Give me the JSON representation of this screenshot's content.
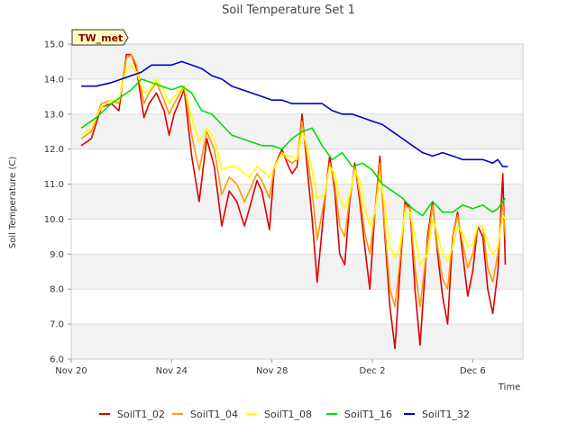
{
  "chart_data": {
    "type": "line",
    "title": "Soil Temperature Set 1",
    "badge": "TW_met",
    "xlabel": "Time",
    "ylabel": "Soil Temperature (C)",
    "x_tick_labels": [
      "Nov 20",
      "Nov 24",
      "Nov 28",
      "Dec 2",
      "Dec 6"
    ],
    "x_tick_days": [
      0,
      4,
      8,
      12,
      16
    ],
    "x_range_days": [
      0,
      18
    ],
    "ylim": [
      6.0,
      15.0
    ],
    "y_ticks": [
      6.0,
      7.0,
      8.0,
      9.0,
      10.0,
      11.0,
      12.0,
      13.0,
      14.0,
      15.0
    ],
    "y_tick_labels": [
      "6.0",
      "7.0",
      "8.0",
      "9.0",
      "10.0",
      "11.0",
      "12.0",
      "13.0",
      "14.0",
      "15.0"
    ],
    "grid": "horizontal bands",
    "legend_position": "bottom",
    "series": [
      {
        "name": "SoilT1_02",
        "color": "#dd0000",
        "x": [
          0.4,
          0.8,
          1.2,
          1.6,
          1.9,
          2.2,
          2.4,
          2.6,
          2.9,
          3.1,
          3.4,
          3.7,
          3.9,
          4.1,
          4.5,
          4.8,
          5.1,
          5.4,
          5.7,
          6.0,
          6.3,
          6.6,
          6.9,
          7.1,
          7.4,
          7.6,
          7.9,
          8.1,
          8.4,
          8.6,
          8.8,
          9.0,
          9.2,
          9.4,
          9.6,
          9.8,
          10.1,
          10.3,
          10.5,
          10.7,
          10.9,
          11.1,
          11.3,
          11.5,
          11.7,
          11.9,
          12.1,
          12.3,
          12.5,
          12.7,
          12.9,
          13.1,
          13.3,
          13.5,
          13.7,
          13.9,
          14.2,
          14.4,
          14.6,
          14.8,
          15.0,
          15.2,
          15.4,
          15.6,
          15.8,
          16.0,
          16.2,
          16.4,
          16.6,
          16.8,
          17.0,
          17.2,
          17.3
        ],
        "y": [
          12.1,
          12.3,
          13.2,
          13.3,
          13.1,
          14.7,
          14.7,
          14.3,
          12.9,
          13.3,
          13.6,
          13.1,
          12.4,
          13.0,
          13.7,
          11.8,
          10.5,
          12.3,
          11.5,
          9.8,
          10.8,
          10.5,
          9.8,
          10.3,
          11.1,
          10.8,
          9.7,
          11.5,
          12.0,
          11.6,
          11.3,
          11.5,
          13.0,
          11.5,
          10.0,
          8.2,
          10.5,
          11.8,
          10.8,
          9.0,
          8.7,
          10.5,
          11.6,
          10.5,
          9.2,
          8.0,
          10.2,
          11.8,
          9.5,
          7.5,
          6.3,
          8.5,
          10.5,
          10.3,
          8.0,
          6.4,
          9.5,
          10.5,
          9.0,
          7.8,
          7.0,
          9.5,
          10.2,
          9.0,
          7.8,
          8.5,
          9.8,
          9.5,
          8.0,
          7.3,
          8.5,
          11.3,
          8.7
        ]
      },
      {
        "name": "SoilT1_04",
        "color": "#ff9900",
        "x": [
          0.4,
          0.8,
          1.2,
          1.6,
          1.9,
          2.2,
          2.4,
          2.6,
          2.9,
          3.1,
          3.4,
          3.7,
          3.9,
          4.1,
          4.5,
          4.8,
          5.1,
          5.4,
          5.7,
          6.0,
          6.3,
          6.6,
          6.9,
          7.1,
          7.4,
          7.6,
          7.9,
          8.1,
          8.4,
          8.6,
          8.8,
          9.0,
          9.2,
          9.4,
          9.6,
          9.8,
          10.1,
          10.3,
          10.5,
          10.7,
          10.9,
          11.1,
          11.3,
          11.5,
          11.7,
          11.9,
          12.1,
          12.3,
          12.5,
          12.7,
          12.9,
          13.1,
          13.3,
          13.5,
          13.7,
          13.9,
          14.2,
          14.4,
          14.6,
          14.8,
          15.0,
          15.2,
          15.4,
          15.6,
          15.8,
          16.0,
          16.2,
          16.4,
          16.6,
          16.8,
          17.0,
          17.2,
          17.3
        ],
        "y": [
          12.3,
          12.5,
          13.3,
          13.4,
          13.3,
          14.6,
          14.7,
          14.4,
          13.3,
          13.6,
          13.9,
          13.4,
          13.0,
          13.3,
          13.8,
          12.4,
          11.4,
          12.5,
          12.0,
          10.7,
          11.2,
          11.0,
          10.5,
          10.8,
          11.3,
          11.1,
          10.6,
          11.5,
          11.9,
          11.7,
          11.6,
          11.7,
          12.8,
          11.8,
          10.8,
          9.4,
          10.6,
          11.6,
          11.0,
          9.8,
          9.5,
          10.6,
          11.5,
          10.7,
          9.6,
          9.0,
          10.2,
          11.6,
          9.7,
          8.0,
          7.5,
          8.8,
          10.4,
          10.3,
          8.6,
          7.5,
          9.3,
          10.4,
          9.2,
          8.3,
          8.0,
          9.5,
          10.1,
          9.3,
          8.6,
          9.0,
          9.8,
          9.8,
          8.6,
          8.2,
          9.0,
          10.5,
          9.5
        ]
      },
      {
        "name": "SoilT1_08",
        "color": "#ffff00",
        "x": [
          0.4,
          0.8,
          1.2,
          1.6,
          1.9,
          2.2,
          2.4,
          2.6,
          2.9,
          3.1,
          3.4,
          3.7,
          3.9,
          4.1,
          4.5,
          4.8,
          5.1,
          5.4,
          5.7,
          6.0,
          6.3,
          6.6,
          6.9,
          7.1,
          7.4,
          7.6,
          7.9,
          8.1,
          8.4,
          8.6,
          8.8,
          9.0,
          9.2,
          9.4,
          9.6,
          9.8,
          10.1,
          10.3,
          10.5,
          10.7,
          10.9,
          11.1,
          11.3,
          11.5,
          11.7,
          11.9,
          12.1,
          12.3,
          12.5,
          12.7,
          12.9,
          13.1,
          13.3,
          13.5,
          13.7,
          13.9,
          14.2,
          14.4,
          14.6,
          14.8,
          15.0,
          15.2,
          15.4,
          15.6,
          15.8,
          16.0,
          16.2,
          16.4,
          16.6,
          16.8,
          17.0,
          17.2,
          17.3
        ],
        "y": [
          12.4,
          12.6,
          13.2,
          13.4,
          13.4,
          14.3,
          14.4,
          14.2,
          13.6,
          13.7,
          14.0,
          13.7,
          13.3,
          13.5,
          13.8,
          12.9,
          12.2,
          12.6,
          12.3,
          11.4,
          11.5,
          11.5,
          11.3,
          11.2,
          11.5,
          11.4,
          11.2,
          11.5,
          11.9,
          11.8,
          11.8,
          11.7,
          12.5,
          12.1,
          11.4,
          10.6,
          10.7,
          11.5,
          11.3,
          10.6,
          10.3,
          10.7,
          11.4,
          11.1,
          10.3,
          9.8,
          10.2,
          11.2,
          10.4,
          9.2,
          8.9,
          9.2,
          10.2,
          10.2,
          9.5,
          8.7,
          9.0,
          10.0,
          9.6,
          9.0,
          8.8,
          9.2,
          9.8,
          9.6,
          9.2,
          9.3,
          9.8,
          9.8,
          9.3,
          9.0,
          9.2,
          10.1,
          10.0
        ]
      },
      {
        "name": "SoilT1_16",
        "color": "#00dd00",
        "x": [
          0.4,
          1.0,
          1.6,
          2.0,
          2.4,
          2.8,
          3.2,
          3.6,
          4.0,
          4.4,
          4.8,
          5.2,
          5.6,
          6.0,
          6.4,
          6.8,
          7.2,
          7.6,
          8.0,
          8.4,
          8.8,
          9.2,
          9.6,
          10.0,
          10.4,
          10.8,
          11.2,
          11.6,
          12.0,
          12.4,
          12.8,
          13.2,
          13.6,
          14.0,
          14.4,
          14.8,
          15.2,
          15.6,
          16.0,
          16.4,
          16.8,
          17.0,
          17.2,
          17.3
        ],
        "y": [
          12.6,
          12.9,
          13.3,
          13.5,
          13.7,
          14.0,
          13.9,
          13.8,
          13.7,
          13.8,
          13.6,
          13.1,
          13.0,
          12.7,
          12.4,
          12.3,
          12.2,
          12.1,
          12.1,
          12.0,
          12.3,
          12.5,
          12.6,
          12.1,
          11.7,
          11.9,
          11.5,
          11.6,
          11.4,
          11.0,
          10.8,
          10.6,
          10.3,
          10.1,
          10.5,
          10.2,
          10.2,
          10.4,
          10.3,
          10.4,
          10.2,
          10.3,
          10.5,
          10.6
        ]
      },
      {
        "name": "SoilT1_32",
        "color": "#0000cc",
        "x": [
          0.4,
          1.0,
          1.6,
          2.0,
          2.4,
          2.8,
          3.0,
          3.2,
          3.6,
          4.0,
          4.4,
          4.8,
          5.2,
          5.6,
          6.0,
          6.4,
          6.8,
          7.2,
          7.6,
          8.0,
          8.4,
          8.8,
          9.2,
          9.6,
          10.0,
          10.4,
          10.8,
          11.2,
          11.6,
          12.0,
          12.4,
          12.8,
          13.2,
          13.6,
          14.0,
          14.4,
          14.8,
          15.2,
          15.6,
          16.0,
          16.4,
          16.8,
          17.0,
          17.2,
          17.4
        ],
        "y": [
          13.8,
          13.8,
          13.9,
          14.0,
          14.1,
          14.2,
          14.3,
          14.4,
          14.4,
          14.4,
          14.5,
          14.4,
          14.3,
          14.1,
          14.0,
          13.8,
          13.7,
          13.6,
          13.5,
          13.4,
          13.4,
          13.3,
          13.3,
          13.3,
          13.3,
          13.1,
          13.0,
          13.0,
          12.9,
          12.8,
          12.7,
          12.5,
          12.3,
          12.1,
          11.9,
          11.8,
          11.9,
          11.8,
          11.7,
          11.7,
          11.7,
          11.6,
          11.7,
          11.5,
          11.5
        ]
      }
    ]
  }
}
